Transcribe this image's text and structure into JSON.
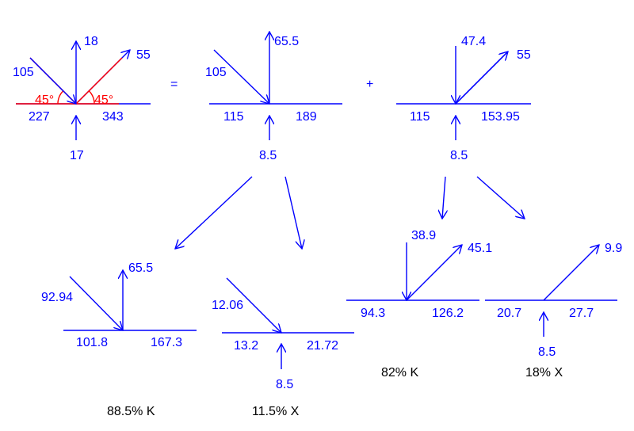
{
  "colors": {
    "main": "#0000ff",
    "angle": "#ff0000",
    "caption": "#000000"
  },
  "operators": {
    "equals": "=",
    "plus": "+"
  },
  "decompositions": [
    {
      "angle_left": "45°",
      "angle_right": "45°",
      "up": "18",
      "diag_left": "105",
      "diag_right": "55",
      "left": "227",
      "right": "343",
      "down": "17"
    },
    {
      "up": "65.5",
      "diag_left": "105",
      "left": "115",
      "right": "189",
      "down": "8.5"
    },
    {
      "up": "47.4",
      "diag_right": "55",
      "left": "115",
      "right": "153.95",
      "down": "8.5"
    }
  ],
  "results": [
    {
      "caption": "88.5% K",
      "up": "65.5",
      "diag_left": "92.94",
      "left": "101.8",
      "right": "167.3"
    },
    {
      "caption": "11.5% X",
      "diag_left": "12.06",
      "left": "13.2",
      "right": "21.72",
      "down": "8.5"
    },
    {
      "caption": "82% K",
      "up": "38.9",
      "diag_right": "45.1",
      "left": "94.3",
      "right": "126.2"
    },
    {
      "caption": "18% X",
      "diag_right": "9.9",
      "left": "20.7",
      "right": "27.7",
      "down": "8.5"
    }
  ]
}
